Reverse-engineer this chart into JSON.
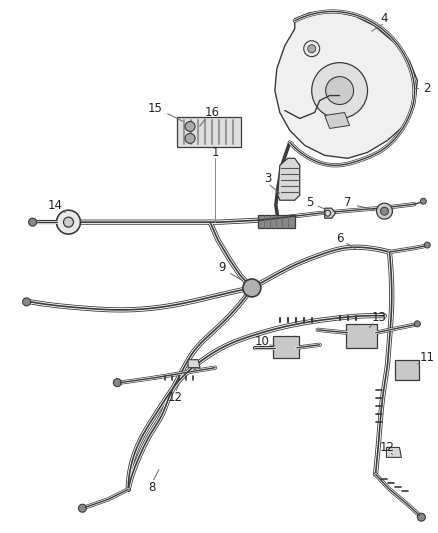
{
  "background_color": "#ffffff",
  "fig_width": 4.38,
  "fig_height": 5.33,
  "dpi": 100,
  "line_color": "#3a3a3a",
  "label_color": "#222222",
  "label_fontsize": 8.5
}
